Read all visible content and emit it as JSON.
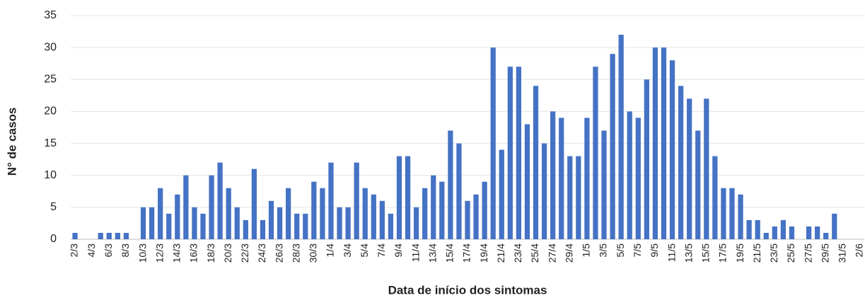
{
  "chart_data": {
    "type": "bar",
    "xlabel": "Data de início dos sintomas",
    "ylabel": "N° de casos",
    "color": "#4472c4",
    "grid": true,
    "ylim": [
      0,
      35
    ],
    "yticks": [
      0,
      5,
      10,
      15,
      20,
      25,
      30,
      35
    ],
    "categories": [
      "2/3",
      null,
      "4/3",
      null,
      "6/3",
      null,
      "8/3",
      null,
      "10/3",
      null,
      "12/3",
      null,
      "14/3",
      null,
      "16/3",
      null,
      "18/3",
      null,
      "20/3",
      null,
      "22/3",
      null,
      "24/3",
      null,
      "26/3",
      null,
      "28/3",
      null,
      "30/3",
      null,
      "1/4",
      null,
      "3/4",
      null,
      "5/4",
      null,
      "7/4",
      null,
      "9/4",
      null,
      "11/4",
      null,
      "13/4",
      null,
      "15/4",
      null,
      "17/4",
      null,
      "19/4",
      null,
      "21/4",
      null,
      "23/4",
      null,
      "25/4",
      null,
      "27/4",
      null,
      "29/4",
      null,
      "1/5",
      null,
      "3/5",
      null,
      "5/5",
      null,
      "7/5",
      null,
      "9/5",
      null,
      "11/5",
      null,
      "13/5",
      null,
      "15/5",
      null,
      "17/5",
      null,
      "19/5",
      null,
      "21/5",
      null,
      "23/5",
      null,
      "25/5",
      null,
      "27/5",
      null,
      "29/5",
      null,
      "31/5",
      null,
      "2/6"
    ],
    "values": [
      1,
      0,
      0,
      1,
      1,
      1,
      1,
      0,
      5,
      5,
      8,
      4,
      7,
      10,
      5,
      4,
      10,
      12,
      8,
      5,
      3,
      11,
      3,
      6,
      5,
      8,
      4,
      4,
      9,
      8,
      12,
      5,
      5,
      12,
      8,
      7,
      6,
      4,
      13,
      13,
      5,
      8,
      10,
      9,
      17,
      15,
      6,
      7,
      9,
      30,
      14,
      27,
      27,
      18,
      24,
      15,
      20,
      19,
      13,
      13,
      19,
      27,
      17,
      29,
      32,
      20,
      19,
      25,
      30,
      30,
      28,
      24,
      22,
      17,
      22,
      13,
      8,
      8,
      7,
      3,
      3,
      1,
      2,
      3,
      2,
      0,
      2,
      2,
      1,
      4,
      0,
      0,
      0
    ]
  }
}
